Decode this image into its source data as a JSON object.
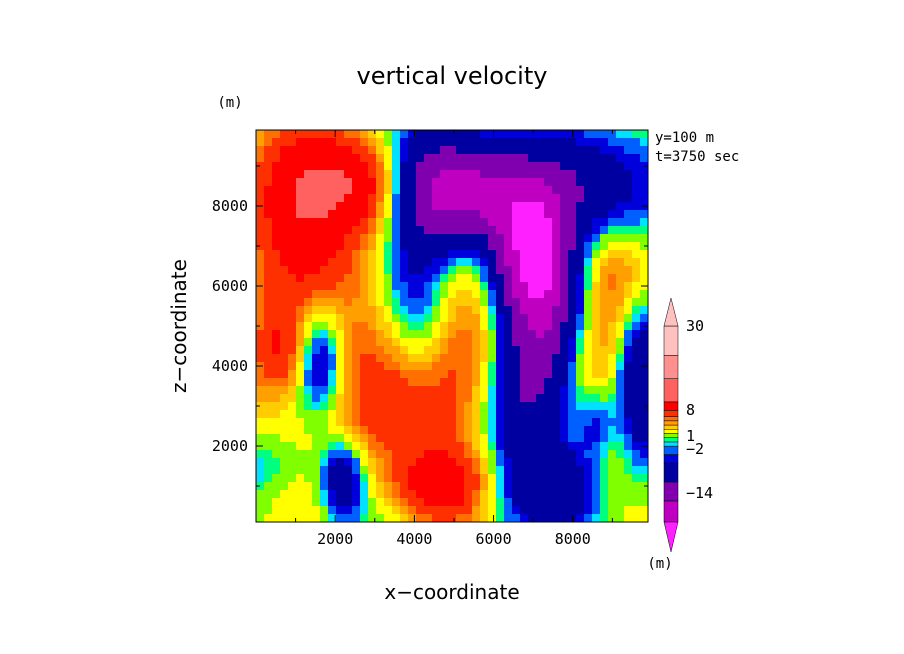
{
  "chart_data": {
    "type": "heatmap",
    "title": "vertical velocity",
    "xlabel": "x−coordinate",
    "ylabel": "z−coordinate",
    "unit_top": "(m)",
    "xlim": [
      0,
      9900
    ],
    "ylim": [
      100,
      9900
    ],
    "x_ticks": [
      2000,
      4000,
      6000,
      8000
    ],
    "y_ticks": [
      2000,
      4000,
      6000,
      8000
    ],
    "info": [
      "y=100 m",
      "t=3750 sec"
    ],
    "colorbar": {
      "unit": "(m)",
      "tick_labels": [
        "30",
        "8",
        "1",
        "−2",
        "−14"
      ],
      "colors": [
        "#ff20ff",
        "#c000c0",
        "#8000b0",
        "#0000a0",
        "#0000dd",
        "#0060ff",
        "#00e0ff",
        "#00ff80",
        "#80ff00",
        "#ffff00",
        "#ffcc00",
        "#ffa000",
        "#ff7000",
        "#ff3000",
        "#ff0000",
        "#ff6060",
        "#ff9090",
        "#ffc0c0"
      ]
    },
    "field": {
      "components": [
        {
          "x": 1200,
          "z": 8400,
          "amp": 10,
          "sx": 900,
          "sz": 1300
        },
        {
          "x": 2700,
          "z": 8600,
          "amp": 6,
          "sx": 800,
          "sz": 800
        },
        {
          "x": 1500,
          "z": 5500,
          "amp": 4,
          "sx": 1500,
          "sz": 2000
        },
        {
          "x": 600,
          "z": 4300,
          "amp": 4,
          "sx": 500,
          "sz": 700
        },
        {
          "x": 2000,
          "z": 2500,
          "amp": 2,
          "sx": 1400,
          "sz": 1200
        },
        {
          "x": 3200,
          "z": 4200,
          "amp": 2,
          "sx": 800,
          "sz": 1500
        },
        {
          "x": 4800,
          "z": 2800,
          "amp": 5,
          "sx": 1000,
          "sz": 1700
        },
        {
          "x": 4700,
          "z": 900,
          "amp": 7,
          "sx": 900,
          "sz": 600
        },
        {
          "x": 5500,
          "z": 4500,
          "amp": 2,
          "sx": 800,
          "sz": 1500
        },
        {
          "x": 4200,
          "z": 6200,
          "amp": 1.5,
          "sx": 500,
          "sz": 800
        },
        {
          "x": 9000,
          "z": 6200,
          "amp": 4,
          "sx": 700,
          "sz": 900
        },
        {
          "x": 8600,
          "z": 4400,
          "amp": 3,
          "sx": 600,
          "sz": 800
        },
        {
          "x": 9000,
          "z": 2300,
          "amp": 2,
          "sx": 600,
          "sz": 1000
        },
        {
          "x": 4400,
          "z": 8600,
          "amp": -8,
          "sx": 900,
          "sz": 1000
        },
        {
          "x": 4100,
          "z": 6000,
          "amp": -6,
          "sx": 600,
          "sz": 1600
        },
        {
          "x": 5600,
          "z": 8200,
          "amp": -6,
          "sx": 1000,
          "sz": 800
        },
        {
          "x": 7000,
          "z": 6800,
          "amp": -14,
          "sx": 700,
          "sz": 1100
        },
        {
          "x": 7600,
          "z": 8500,
          "amp": -8,
          "sx": 1300,
          "sz": 900
        },
        {
          "x": 7200,
          "z": 4800,
          "amp": -7,
          "sx": 700,
          "sz": 1500
        },
        {
          "x": 6700,
          "z": 2600,
          "amp": -6,
          "sx": 700,
          "sz": 1700
        },
        {
          "x": 7800,
          "z": 1000,
          "amp": -5,
          "sx": 600,
          "sz": 700
        },
        {
          "x": 1600,
          "z": 4200,
          "amp": -8,
          "sx": 450,
          "sz": 1000
        },
        {
          "x": 2200,
          "z": 1200,
          "amp": -7,
          "sx": 400,
          "sz": 700
        },
        {
          "x": 9700,
          "z": 3800,
          "amp": -7,
          "sx": 400,
          "sz": 1500
        },
        {
          "x": 8600,
          "z": 2500,
          "amp": -4,
          "sx": 350,
          "sz": 600
        },
        {
          "x": 5700,
          "z": 700,
          "amp": -2,
          "sx": 900,
          "sz": 500
        },
        {
          "x": 100,
          "z": 1500,
          "amp": -2,
          "sx": 800,
          "sz": 600
        }
      ],
      "base": 1.5
    }
  }
}
